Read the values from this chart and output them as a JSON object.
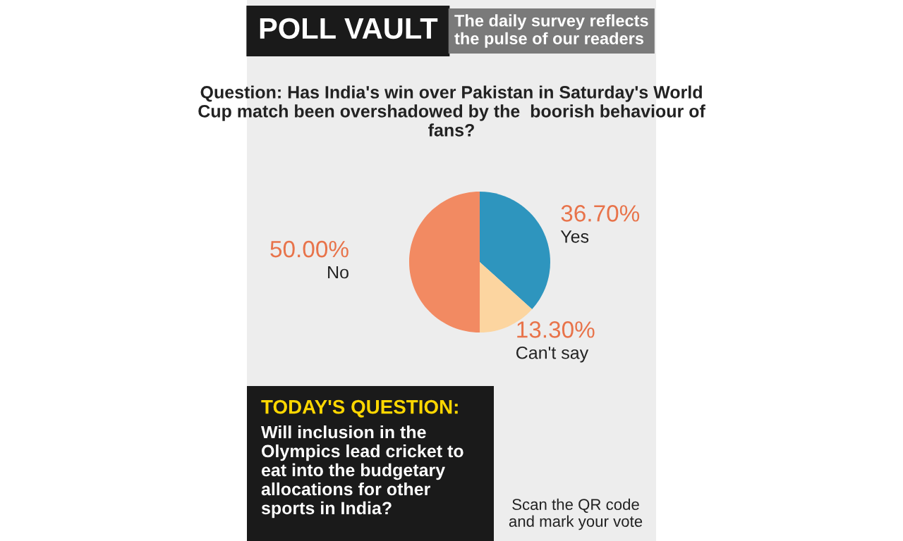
{
  "chart_data": {
    "type": "pie",
    "title": "POLL VAULT",
    "subtitle": "The daily survey reflects the pulse of our readers",
    "categories": [
      "Yes",
      "Can't say",
      "No"
    ],
    "values": [
      36.7,
      13.3,
      50
    ],
    "value_labels": [
      "36.70%",
      "13.30%",
      "50.00%"
    ],
    "colors": [
      "#2e95be",
      "#fcd5a0",
      "#f28a62"
    ],
    "annotations": [
      "Question: Has India's win over Pakistan in Saturday's World Cup match been overshadowed by the  boorish behaviour of fans?",
      "TODAY'S QUESTION:",
      "Will inclusion in the Olympics lead cricket to eat into the budgetary allocations for other sports in India?",
      "Scan the QR code and mark your vote"
    ],
    "legend": false
  }
}
